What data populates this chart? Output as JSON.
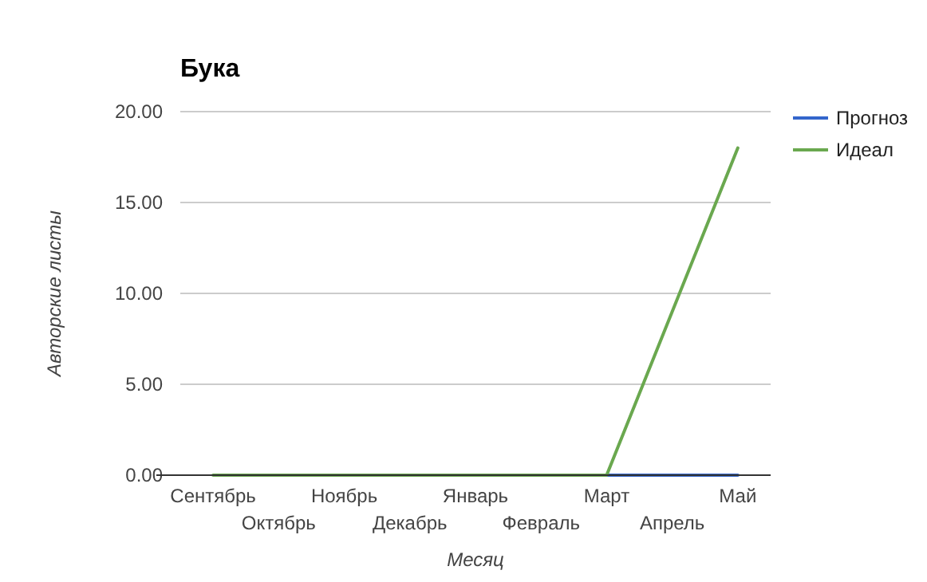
{
  "chart_data": {
    "type": "line",
    "title": "Бука",
    "xlabel": "Месяц",
    "ylabel": "Авторские листы",
    "categories": [
      "Сентябрь",
      "Октябрь",
      "Ноябрь",
      "Декабрь",
      "Январь",
      "Февраль",
      "Март",
      "Апрель",
      "Май"
    ],
    "series": [
      {
        "name": "Прогноз",
        "color": "#3366cc",
        "values": [
          null,
          null,
          null,
          null,
          null,
          null,
          0,
          0,
          0
        ]
      },
      {
        "name": "Идеал",
        "color": "#6aa84f",
        "values": [
          0,
          0,
          0,
          0,
          0,
          0,
          0,
          9,
          18
        ]
      }
    ],
    "ylim": [
      0,
      20
    ],
    "yticks": [
      {
        "value": 0,
        "label": "0.00"
      },
      {
        "value": 5,
        "label": "5.00"
      },
      {
        "value": 10,
        "label": "10.00"
      },
      {
        "value": 15,
        "label": "15.00"
      },
      {
        "value": 20,
        "label": "20.00"
      }
    ],
    "grid": "y",
    "legend": "top right",
    "marker": "none",
    "line_style": "solid"
  }
}
